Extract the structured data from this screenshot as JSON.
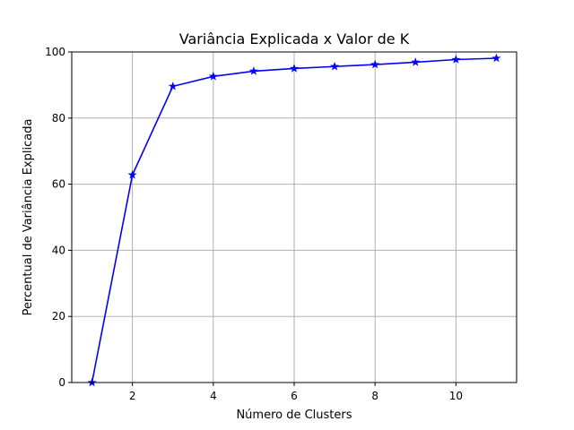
{
  "chart_data": {
    "type": "line",
    "title": "Variância Explicada x Valor de K",
    "xlabel": "Número de Clusters",
    "ylabel": "Percentual de Variância Explicada",
    "xlim": [
      0.5,
      11.5
    ],
    "ylim": [
      0,
      100
    ],
    "xticks": [
      2,
      4,
      6,
      8,
      10
    ],
    "yticks": [
      0,
      20,
      40,
      60,
      80,
      100
    ],
    "grid": true,
    "series": [
      {
        "color": "#0000ff",
        "marker": "star",
        "x": [
          1,
          2,
          3,
          4,
          5,
          6,
          7,
          8,
          9,
          10,
          11
        ],
        "y": [
          0,
          62.8,
          89.6,
          92.6,
          94.2,
          95.0,
          95.6,
          96.2,
          96.9,
          97.7,
          98.1
        ]
      }
    ]
  }
}
